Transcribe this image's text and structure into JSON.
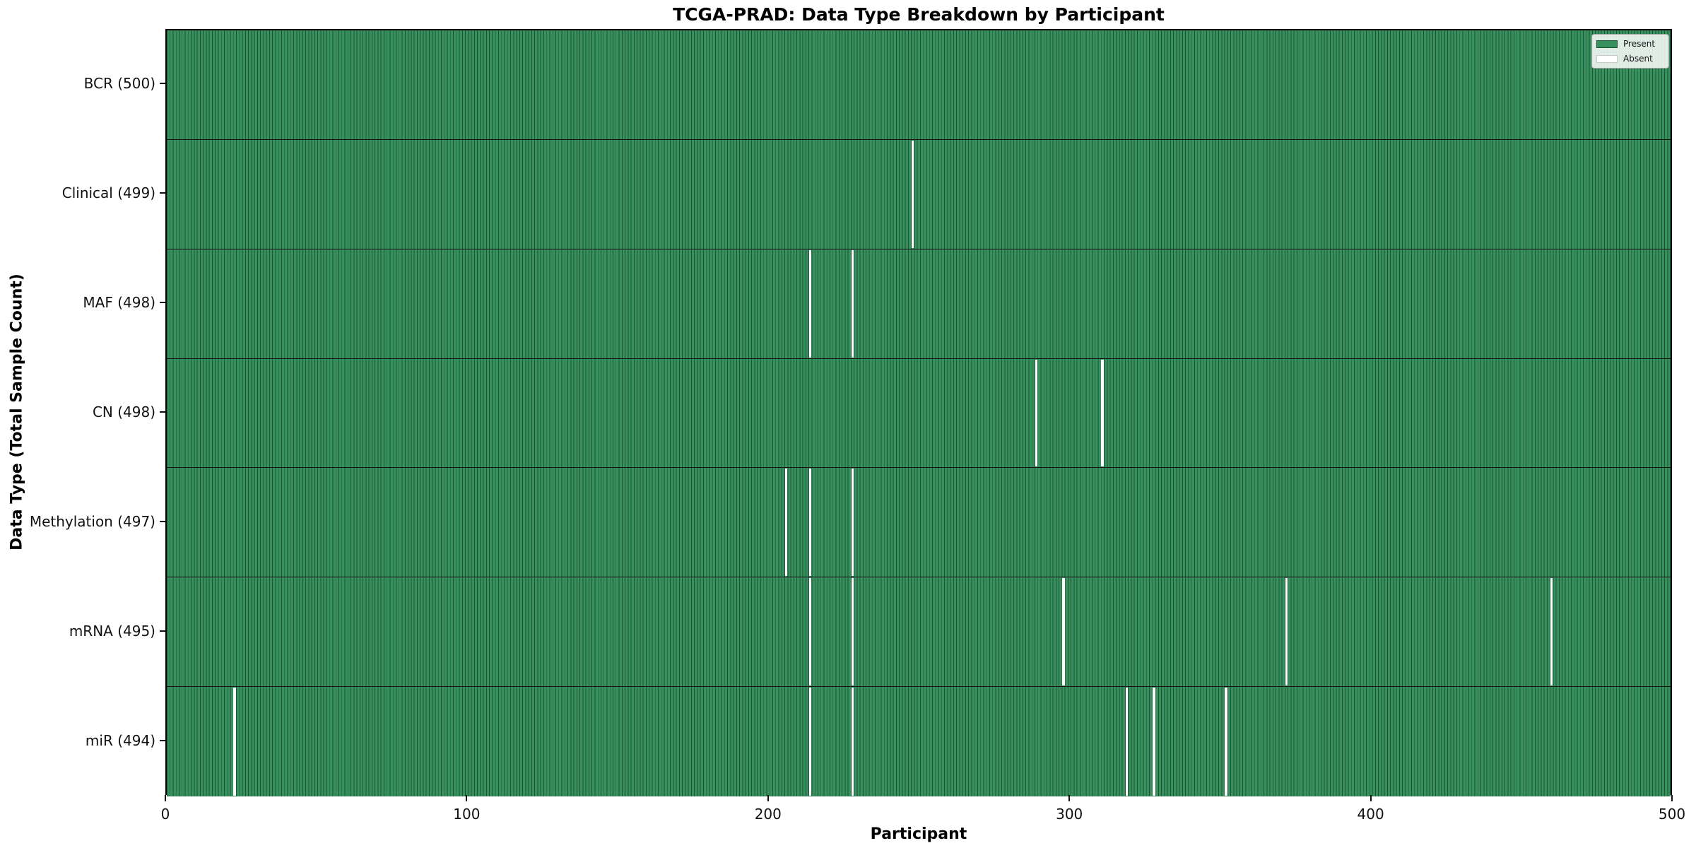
{
  "title": "TCGA-PRAD: Data Type Breakdown by Participant",
  "colors": {
    "present_fill": "#37905e",
    "cell_edge": "#1d5334",
    "absent_fill": "#ffffff",
    "row_divider": "#141414",
    "plot_border": "#000000"
  },
  "chart_data": {
    "type": "heatmap",
    "title": "TCGA-PRAD: Data Type Breakdown by Participant",
    "xlabel": "Participant",
    "ylabel": "Data Type (Total Sample Count)",
    "x_range": [
      0,
      500
    ],
    "x_ticks": [
      0,
      100,
      200,
      300,
      400,
      500
    ],
    "n_participants": 500,
    "grid": false,
    "legend_position": "upper right",
    "legend": [
      {
        "label": "Present",
        "color": "#37905e"
      },
      {
        "label": "Absent",
        "color": "#ffffff"
      }
    ],
    "rows": [
      {
        "key": "bcr",
        "label": "BCR (500)",
        "total": 500,
        "absent_participants": []
      },
      {
        "key": "clinical",
        "label": "Clinical (499)",
        "total": 499,
        "absent_participants": [
          247
        ]
      },
      {
        "key": "maf",
        "label": "MAF (498)",
        "total": 498,
        "absent_participants": [
          213,
          227
        ]
      },
      {
        "key": "cn",
        "label": "CN (498)",
        "total": 498,
        "absent_participants": [
          288,
          310
        ]
      },
      {
        "key": "methylation",
        "label": "Methylation (497)",
        "total": 497,
        "absent_participants": [
          205,
          213,
          227
        ]
      },
      {
        "key": "mrna",
        "label": "mRNA (495)",
        "total": 495,
        "absent_participants": [
          213,
          227,
          297,
          371,
          459
        ]
      },
      {
        "key": "mir",
        "label": "miR (494)",
        "total": 494,
        "absent_participants": [
          22,
          213,
          227,
          318,
          327,
          351
        ]
      }
    ]
  }
}
